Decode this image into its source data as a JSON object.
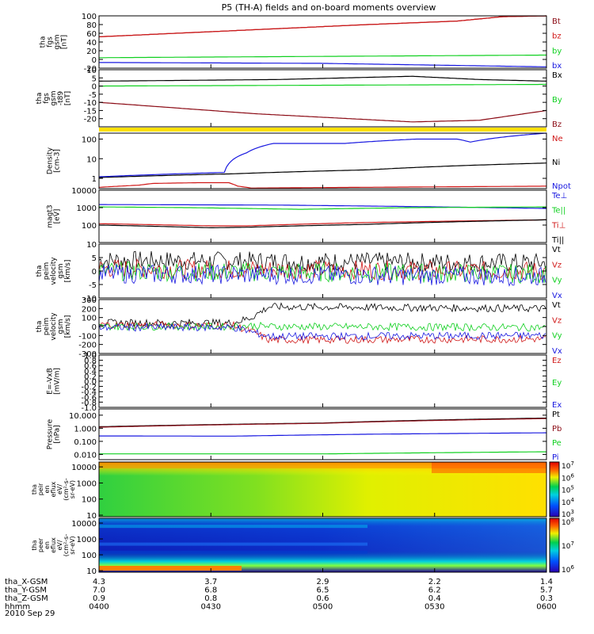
{
  "title": "P5 (TH-A) fields and on-board moments overview",
  "date": "2010 Sep 29",
  "colors": {
    "black": "#000000",
    "red": "#d01818",
    "green": "#10d020",
    "blue": "#1818e0",
    "brown": "#8b0a14",
    "yellow": "#ffe000"
  },
  "chart_data": {
    "type": "line",
    "time_axis": {
      "ticks": [
        "0400",
        "0430",
        "0500",
        "0530",
        "0600"
      ]
    },
    "ephemeris": [
      {
        "label": "tha_X-GSM",
        "values": [
          "4.3",
          "3.7",
          "2.9",
          "2.2",
          "1.4"
        ]
      },
      {
        "label": "tha_Y-GSM",
        "values": [
          "7.0",
          "6.8",
          "6.5",
          "6.2",
          "5.7"
        ]
      },
      {
        "label": "tha_Z-GSM",
        "values": [
          "0.9",
          "0.8",
          "0.6",
          "0.4",
          "0.3"
        ]
      },
      {
        "label": "hhmm",
        "values": [
          "0400",
          "0430",
          "0500",
          "0530",
          "0600"
        ]
      }
    ],
    "panels": [
      {
        "ylabel": [
          "tha",
          "fgs",
          "gsm",
          "[nT]"
        ],
        "ylim": [
          -20,
          100
        ],
        "scale": "linear",
        "ticks": [
          "100",
          "80",
          "60",
          "40",
          "20",
          "0",
          "-20"
        ],
        "legend": [
          "Bt",
          "bz",
          "by",
          "bx"
        ],
        "series": [
          {
            "name": "Bt",
            "color": "brown",
            "x": [
              0,
              30,
              60,
              80,
              90,
              100
            ],
            "values": [
              52,
              66,
              80,
              88,
              98,
              100
            ]
          },
          {
            "name": "bz",
            "color": "red",
            "x": [
              0,
              30,
              60,
              80,
              90,
              100
            ],
            "values": [
              52,
              66,
              80,
              88,
              98,
              100
            ]
          },
          {
            "name": "by",
            "color": "green",
            "x": [
              0,
              50,
              100
            ],
            "values": [
              4,
              7,
              10
            ]
          },
          {
            "name": "bx",
            "color": "blue",
            "x": [
              0,
              50,
              100
            ],
            "values": [
              -7,
              -9,
              -17
            ]
          }
        ]
      },
      {
        "ylabel": [
          "tha",
          "fgs",
          "gsm",
          "-t89",
          "[nT]"
        ],
        "ylim": [
          -25,
          10
        ],
        "scale": "linear",
        "ticks": [
          "10",
          "5",
          "0",
          "-5",
          "-10",
          "-15",
          "-20"
        ],
        "legend": [
          "Bx",
          "By",
          "Bz"
        ],
        "series": [
          {
            "name": "Bx",
            "color": "black",
            "x": [
              0,
              40,
              70,
              85,
              100
            ],
            "values": [
              3,
              4,
              6,
              4,
              3
            ]
          },
          {
            "name": "By",
            "color": "green",
            "x": [
              0,
              50,
              100
            ],
            "values": [
              0,
              0.5,
              1
            ]
          },
          {
            "name": "Bz",
            "color": "brown",
            "x": [
              0,
              35,
              70,
              85,
              100
            ],
            "values": [
              -10,
              -17,
              -22,
              -21,
              -15
            ]
          }
        ]
      },
      {
        "ylabel": [
          "Density",
          "[cm-3]"
        ],
        "ylim": [
          0.3,
          200
        ],
        "scale": "log",
        "ticks": [
          "100",
          "10",
          "1"
        ],
        "legend": [
          "Ne",
          "Ni",
          "Npot"
        ],
        "series": [
          {
            "name": "Ni",
            "color": "black",
            "x": [
              0,
              30,
              60,
              100
            ],
            "values": [
              1.1,
              1.7,
              2.7,
              6
            ]
          },
          {
            "name": "Npot",
            "color": "blue",
            "x": [
              0,
              28,
              33,
              39,
              55,
              71,
              80,
              83,
              100
            ],
            "values": [
              1.2,
              2,
              20,
              60,
              60,
              100,
              100,
              70,
              200
            ]
          },
          {
            "name": "Ne",
            "color": "red",
            "x": [
              0,
              9,
              12,
              22,
              29,
              31,
              33,
              34,
              100
            ],
            "values": [
              0.35,
              0.45,
              0.55,
              0.6,
              0.6,
              0.4,
              0.35,
              0.32,
              0.4
            ]
          }
        ]
      },
      {
        "ylabel": [
          "magt3",
          "[eV]"
        ],
        "ylim": [
          10,
          10000
        ],
        "scale": "log",
        "ticks": [
          "10000",
          "1000",
          "100"
        ],
        "legend": [
          "Te⊥",
          "Te||",
          "Ti⊥",
          "Ti||"
        ],
        "series": [
          {
            "name": "Te⊥",
            "color": "blue",
            "x": [
              0,
              40,
              100
            ],
            "values": [
              1500,
              1400,
              900
            ]
          },
          {
            "name": "Te||",
            "color": "green",
            "x": [
              0,
              20,
              45,
              70,
              100
            ],
            "values": [
              1100,
              1000,
              800,
              1000,
              1100
            ]
          },
          {
            "name": "Ti⊥",
            "color": "red",
            "x": [
              0,
              25,
              33,
              60,
              100
            ],
            "values": [
              120,
              90,
              90,
              140,
              200
            ]
          },
          {
            "name": "Ti||",
            "color": "black",
            "x": [
              0,
              25,
              33,
              60,
              100
            ],
            "values": [
              100,
              70,
              75,
              110,
              200
            ]
          }
        ]
      },
      {
        "ylabel": [
          "tha",
          "peim",
          "velocity",
          "gsm",
          "[km/s]"
        ],
        "ylim": [
          -10,
          10
        ],
        "scale": "linear",
        "noisy": true,
        "ticks": [
          "10",
          "5",
          "0",
          "-5",
          "-10"
        ],
        "legend": [
          "Vt",
          "Vz",
          "Vy",
          "Vx"
        ],
        "series": [
          {
            "name": "Vt",
            "color": "black",
            "x": [
              0,
              100
            ],
            "values": [
              4,
              3
            ]
          },
          {
            "name": "Vz",
            "color": "red",
            "x": [
              0,
              100
            ],
            "values": [
              1,
              0
            ]
          },
          {
            "name": "Vy",
            "color": "green",
            "x": [
              0,
              100
            ],
            "values": [
              0,
              -1
            ]
          },
          {
            "name": "Vx",
            "color": "blue",
            "x": [
              0,
              100
            ],
            "values": [
              -1,
              -2
            ]
          }
        ]
      },
      {
        "ylabel": [
          "tha",
          "peim",
          "velocity",
          "gsm",
          "[km/s]"
        ],
        "ylim": [
          -300,
          300
        ],
        "scale": "linear",
        "noisy": true,
        "ticks": [
          "300",
          "200",
          "100",
          "0",
          "-100",
          "-200",
          "-300"
        ],
        "legend": [
          "Vt",
          "Vz",
          "Vy",
          "Vx"
        ],
        "series": [
          {
            "name": "Vt",
            "color": "black",
            "x": [
              0,
              30,
              34,
              38,
              100
            ],
            "values": [
              40,
              40,
              100,
              220,
              200
            ]
          },
          {
            "name": "Vz",
            "color": "red",
            "x": [
              0,
              30,
              34,
              38,
              100
            ],
            "values": [
              20,
              10,
              -50,
              -150,
              -140
            ]
          },
          {
            "name": "Vy",
            "color": "green",
            "x": [
              0,
              30,
              34,
              38,
              100
            ],
            "values": [
              0,
              0,
              10,
              0,
              -10
            ]
          },
          {
            "name": "Vx",
            "color": "blue",
            "x": [
              0,
              30,
              34,
              38,
              100
            ],
            "values": [
              -10,
              -10,
              -60,
              -110,
              -100
            ]
          }
        ]
      },
      {
        "ylabel": [
          "E=-VxB",
          "[mV/m]"
        ],
        "ylim": [
          -1,
          1
        ],
        "scale": "linear",
        "ticks": [
          "1.0",
          "0.8",
          "0.6",
          "0.4",
          "0.2",
          "0.0",
          "-0.2",
          "-0.4",
          "-0.6",
          "-0.8",
          "-1.0"
        ],
        "legend": [
          "Ez",
          "Ey",
          "Ex"
        ],
        "series": []
      },
      {
        "ylabel": [
          "Pressure",
          "[nPa]"
        ],
        "ylim": [
          0.004,
          30
        ],
        "scale": "log",
        "ticks": [
          "10.000",
          "1.000",
          "0.100",
          "0.010"
        ],
        "legend": [
          "Pt",
          "Pb",
          "Pe",
          "Pi"
        ],
        "series": [
          {
            "name": "Pt",
            "color": "black",
            "x": [
              0,
              50,
              100
            ],
            "values": [
              1.3,
              2.5,
              6
            ]
          },
          {
            "name": "Pb",
            "color": "brown",
            "x": [
              0,
              50,
              100
            ],
            "values": [
              1.2,
              2.4,
              5.5
            ]
          },
          {
            "name": "Pi",
            "color": "blue",
            "x": [
              0,
              30,
              60,
              100
            ],
            "values": [
              0.26,
              0.25,
              0.35,
              0.45
            ]
          },
          {
            "name": "Pe",
            "color": "green",
            "x": [
              0,
              50,
              100
            ],
            "values": [
              0.011,
              0.011,
              0.016
            ]
          }
        ]
      }
    ],
    "spectrograms": [
      {
        "ylabel": [
          "tha",
          "peir",
          "en",
          "eflux",
          "eV/",
          "(cm^2-s-",
          "sr-eV)"
        ],
        "yticks": [
          "10000",
          "1000",
          "100",
          "10"
        ],
        "colorbar_ticks": [
          "10^7",
          "10^6",
          "10^5",
          "10^4",
          "10^3"
        ]
      },
      {
        "ylabel": [
          "tha",
          "peer",
          "en",
          "eflux",
          "eV/",
          "(cm^2-s-",
          "sr-eV)"
        ],
        "yticks": [
          "10000",
          "1000",
          "100",
          "10"
        ],
        "colorbar_ticks": [
          "10^8",
          "10^7",
          "10^6"
        ]
      }
    ]
  }
}
